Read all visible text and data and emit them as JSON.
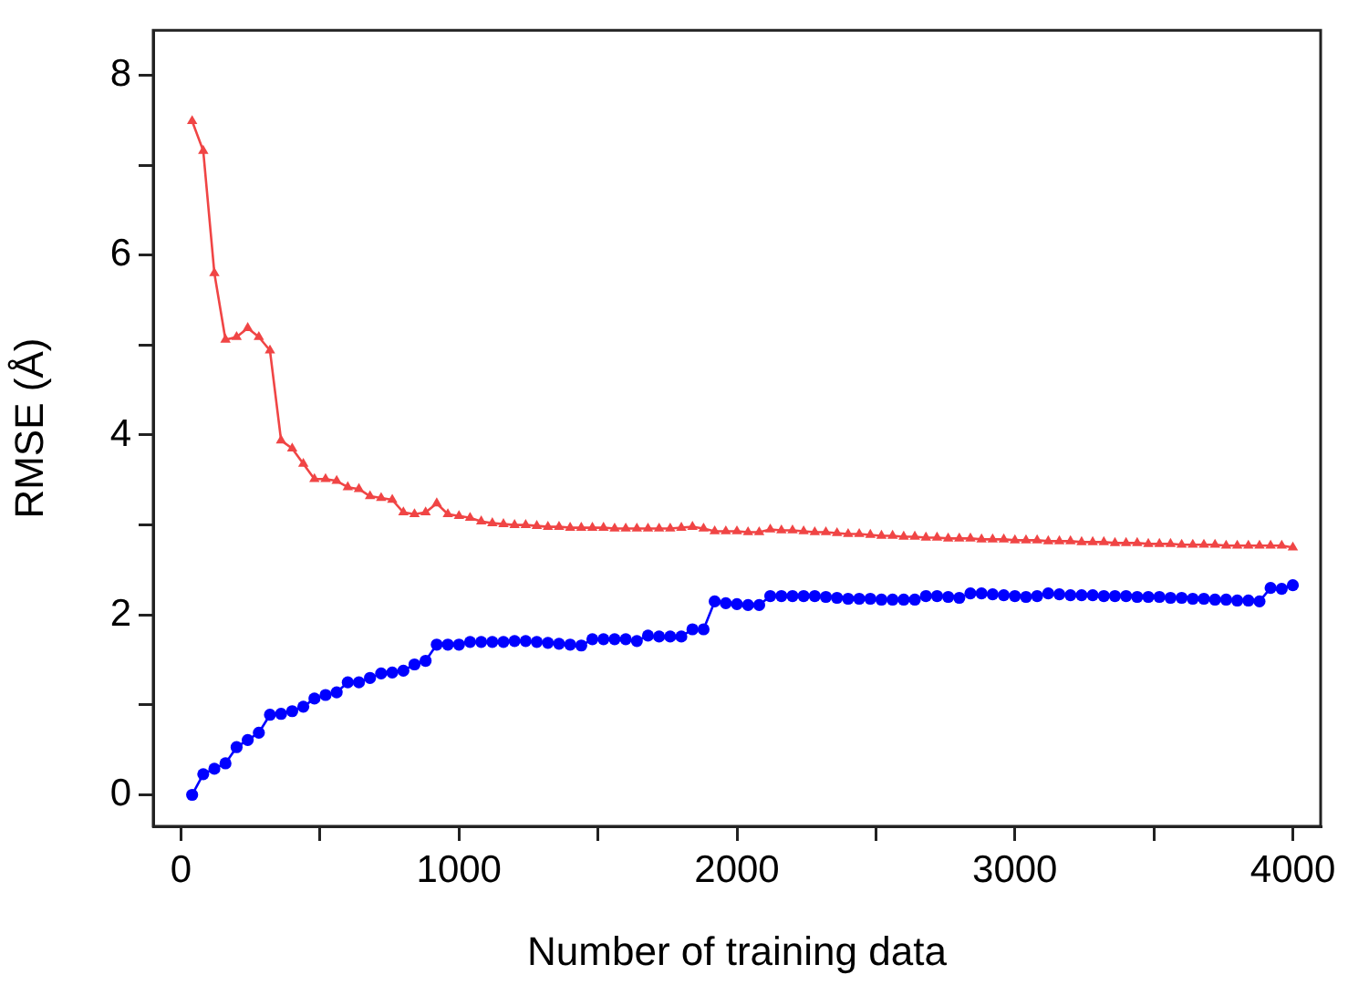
{
  "chart_data": {
    "type": "line",
    "xlabel": "Number of training data",
    "ylabel": "RMSE (Å)",
    "x": [
      40,
      80,
      120,
      160,
      200,
      240,
      280,
      320,
      360,
      400,
      440,
      480,
      520,
      560,
      600,
      640,
      680,
      720,
      760,
      800,
      840,
      880,
      920,
      960,
      1000,
      1040,
      1080,
      1120,
      1160,
      1200,
      1240,
      1280,
      1320,
      1360,
      1400,
      1440,
      1480,
      1520,
      1560,
      1600,
      1640,
      1680,
      1720,
      1760,
      1800,
      1840,
      1880,
      1920,
      1960,
      2000,
      2040,
      2080,
      2120,
      2160,
      2200,
      2240,
      2280,
      2320,
      2360,
      2400,
      2440,
      2480,
      2520,
      2560,
      2600,
      2640,
      2680,
      2720,
      2760,
      2800,
      2840,
      2880,
      2920,
      2960,
      3000,
      3040,
      3080,
      3120,
      3160,
      3200,
      3240,
      3280,
      3320,
      3360,
      3400,
      3440,
      3480,
      3520,
      3560,
      3600,
      3640,
      3680,
      3720,
      3760,
      3800,
      3840,
      3880,
      3920,
      3960,
      4000
    ],
    "series": [
      {
        "color": "#f04545",
        "marker": "triangle",
        "values": [
          7.49,
          7.16,
          5.8,
          5.06,
          5.09,
          5.19,
          5.09,
          4.94,
          3.94,
          3.85,
          3.68,
          3.51,
          3.51,
          3.49,
          3.42,
          3.4,
          3.32,
          3.3,
          3.28,
          3.14,
          3.12,
          3.14,
          3.24,
          3.12,
          3.1,
          3.08,
          3.04,
          3.02,
          3.01,
          3.0,
          3.0,
          2.99,
          2.98,
          2.98,
          2.97,
          2.97,
          2.97,
          2.97,
          2.96,
          2.96,
          2.96,
          2.96,
          2.96,
          2.96,
          2.97,
          2.98,
          2.96,
          2.93,
          2.93,
          2.93,
          2.92,
          2.92,
          2.95,
          2.94,
          2.94,
          2.93,
          2.92,
          2.92,
          2.91,
          2.9,
          2.9,
          2.89,
          2.88,
          2.88,
          2.87,
          2.87,
          2.86,
          2.86,
          2.85,
          2.85,
          2.85,
          2.84,
          2.84,
          2.84,
          2.83,
          2.83,
          2.83,
          2.82,
          2.82,
          2.82,
          2.81,
          2.81,
          2.81,
          2.8,
          2.8,
          2.8,
          2.79,
          2.79,
          2.79,
          2.78,
          2.78,
          2.78,
          2.78,
          2.77,
          2.77,
          2.77,
          2.77,
          2.77,
          2.77,
          2.75
        ]
      },
      {
        "color": "#0000ff",
        "marker": "circle",
        "values": [
          0.0,
          0.23,
          0.29,
          0.35,
          0.53,
          0.61,
          0.69,
          0.89,
          0.9,
          0.93,
          0.98,
          1.07,
          1.11,
          1.14,
          1.25,
          1.25,
          1.3,
          1.35,
          1.36,
          1.38,
          1.45,
          1.49,
          1.67,
          1.67,
          1.67,
          1.7,
          1.7,
          1.7,
          1.7,
          1.71,
          1.71,
          1.7,
          1.69,
          1.68,
          1.67,
          1.66,
          1.73,
          1.73,
          1.73,
          1.73,
          1.71,
          1.77,
          1.76,
          1.76,
          1.76,
          1.84,
          1.84,
          2.15,
          2.13,
          2.12,
          2.11,
          2.11,
          2.21,
          2.21,
          2.21,
          2.21,
          2.21,
          2.2,
          2.19,
          2.18,
          2.18,
          2.18,
          2.17,
          2.17,
          2.17,
          2.17,
          2.21,
          2.21,
          2.2,
          2.19,
          2.24,
          2.24,
          2.23,
          2.22,
          2.21,
          2.2,
          2.21,
          2.24,
          2.23,
          2.22,
          2.22,
          2.22,
          2.21,
          2.21,
          2.21,
          2.2,
          2.2,
          2.2,
          2.19,
          2.19,
          2.18,
          2.18,
          2.17,
          2.17,
          2.16,
          2.16,
          2.15,
          2.3,
          2.29,
          2.33
        ]
      }
    ],
    "xlim": [
      -100,
      4100
    ],
    "xticks": [
      0,
      {
        "value": 500,
        "label": null
      },
      1000,
      {
        "value": 1500,
        "label": null
      },
      2000,
      {
        "value": 2500,
        "label": null
      },
      3000,
      {
        "value": 3500,
        "label": null
      },
      4000
    ],
    "ylim": [
      -0.35,
      8.5
    ],
    "yticks": [
      0,
      {
        "value": 1,
        "label": null
      },
      2,
      {
        "value": 3,
        "label": null
      },
      4,
      {
        "value": 5,
        "label": null
      },
      6,
      {
        "value": 7,
        "label": null
      },
      8
    ],
    "grid": false,
    "legend": false,
    "line_style": "solid"
  }
}
